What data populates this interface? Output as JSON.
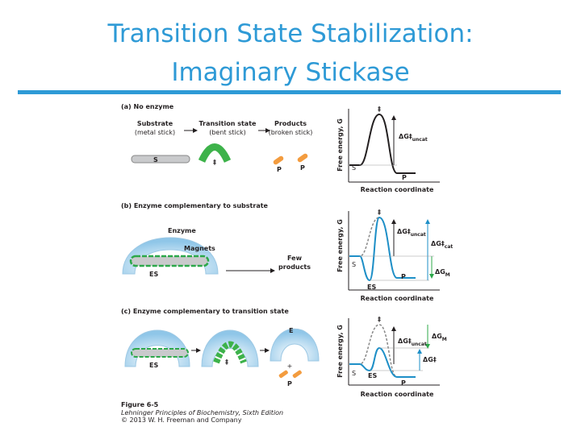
{
  "header": {
    "title_line1": "Transition State Stabilization:",
    "title_line2": "Imaginary Stickase"
  },
  "figure": {
    "panel_a": {
      "label": "(a) No enzyme",
      "substrate": "Substrate",
      "substrate_note": "(metal stick)",
      "transition": "Transition state",
      "transition_note": "(bent stick)",
      "products": "Products",
      "products_note": "(broken stick)",
      "stick_s": "S",
      "stick_ts": "‡",
      "stick_p1": "P",
      "stick_p2": "P",
      "graph": {
        "y_axis": "Free energy, G",
        "x_axis": "Reaction coordinate",
        "ts": "‡",
        "s": "S",
        "p": "P",
        "dg_uncat": "ΔG‡",
        "dg_uncat_sub": "uncat"
      }
    },
    "panel_b": {
      "label": "(b) Enzyme complementary to substrate",
      "enzyme": "Enzyme",
      "magnets": "Magnets",
      "es": "ES",
      "few_products_1": "Few",
      "few_products_2": "products",
      "graph": {
        "y_axis": "Free energy, G",
        "x_axis": "Reaction coordinate",
        "ts": "‡",
        "s": "S",
        "es": "ES",
        "p": "P",
        "dg_uncat": "ΔG‡",
        "dg_uncat_sub": "uncat",
        "dg_cat": "ΔG‡",
        "dg_cat_sub": "cat",
        "dg_m": "ΔG",
        "dg_m_sub": "M"
      }
    },
    "panel_c": {
      "label": "(c) Enzyme complementary to transition state",
      "es": "ES",
      "ts": "‡",
      "e": "E",
      "plus": "+",
      "p": "P",
      "graph": {
        "y_axis": "Free energy, G",
        "x_axis": "Reaction coordinate",
        "ts": "‡",
        "s": "S",
        "es": "ES",
        "p": "P",
        "dg_uncat": "ΔG‡",
        "dg_uncat_sub": "uncat",
        "dg_m": "ΔG",
        "dg_m_sub": "M",
        "dg_ts": "ΔG‡"
      }
    },
    "caption": {
      "figure": "Figure 6-5",
      "book": "Lehninger Principles of Biochemistry, Sixth Edition",
      "copyright": "© 2013 W. H. Freeman and Company"
    }
  }
}
